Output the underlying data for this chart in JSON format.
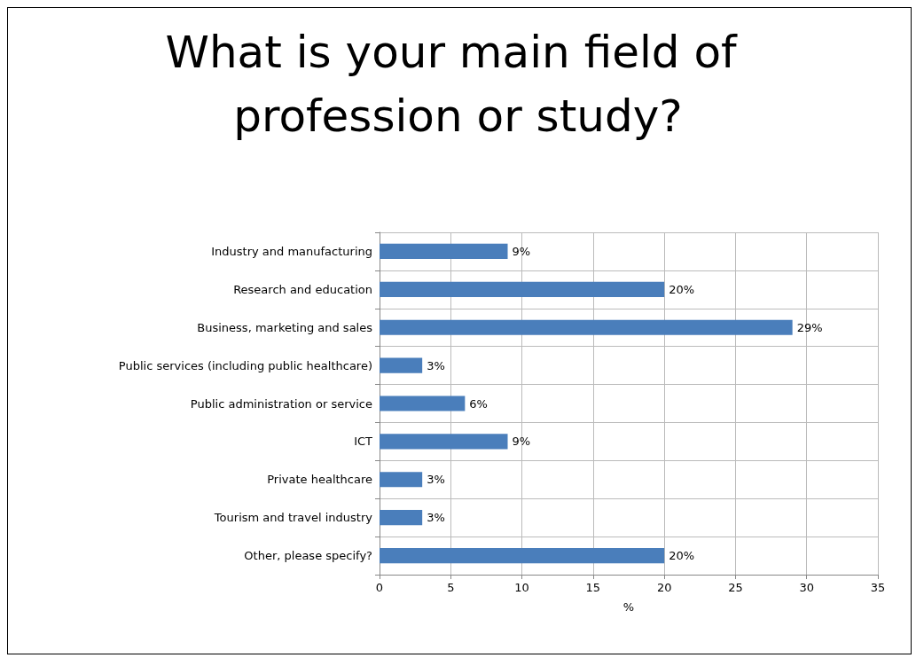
{
  "chart_data": {
    "type": "bar",
    "orientation": "horizontal",
    "title": "What is your main field of profession or study?",
    "categories": [
      "Industry and manufacturing",
      "Research and education",
      "Business, marketing and sales",
      "Public services (including public healthcare)",
      "Public administration or service",
      "ICT",
      "Private healthcare",
      "Tourism and travel industry",
      "Other, please specify?"
    ],
    "values": [
      9,
      20,
      29,
      3,
      6,
      9,
      3,
      3,
      20
    ],
    "value_labels": [
      "9%",
      "20%",
      "29%",
      "3%",
      "6%",
      "9%",
      "3%",
      "3%",
      "20%"
    ],
    "color": "#4a7ebb",
    "xlabel": "%",
    "xlim": [
      0,
      35
    ],
    "xticks": [
      0,
      5,
      10,
      15,
      20,
      25,
      30,
      35
    ],
    "grid": true
  }
}
